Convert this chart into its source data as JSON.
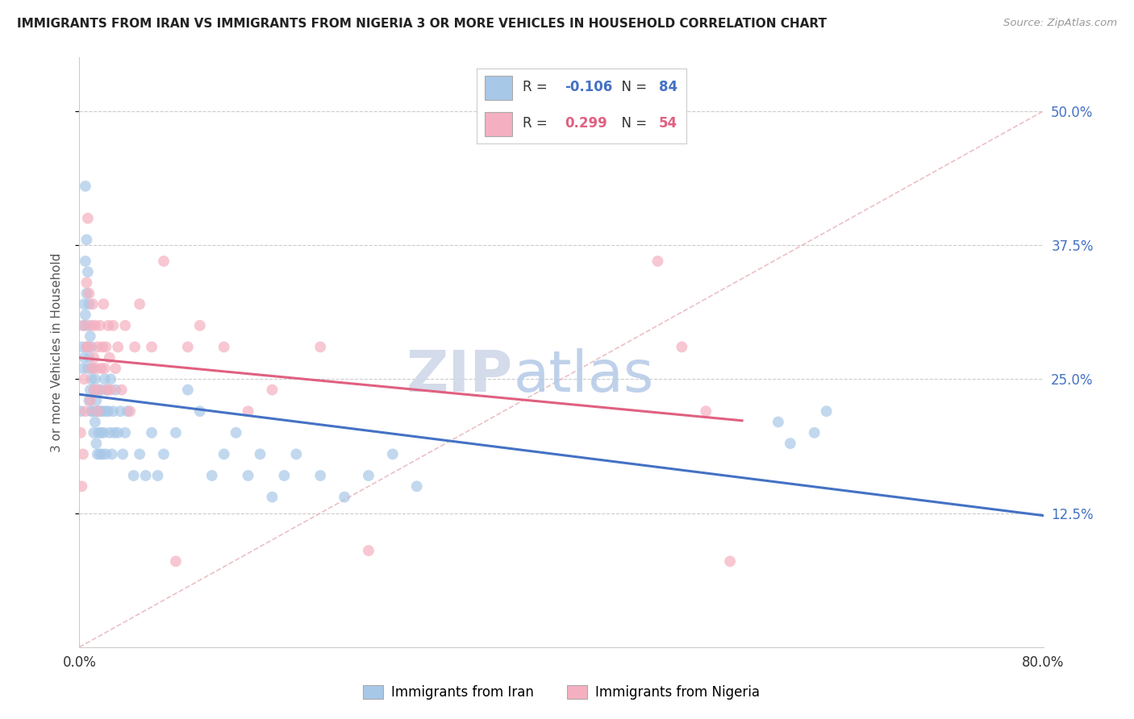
{
  "title": "IMMIGRANTS FROM IRAN VS IMMIGRANTS FROM NIGERIA 3 OR MORE VEHICLES IN HOUSEHOLD CORRELATION CHART",
  "source": "Source: ZipAtlas.com",
  "ylabel": "3 or more Vehicles in Household",
  "ytick_labels": [
    "12.5%",
    "25.0%",
    "37.5%",
    "50.0%"
  ],
  "legend_iran": "Immigrants from Iran",
  "legend_nigeria": "Immigrants from Nigeria",
  "R_iran": -0.106,
  "N_iran": 84,
  "R_nigeria": 0.299,
  "N_nigeria": 54,
  "iran_color": "#a8c8e8",
  "nigeria_color": "#f4b0c0",
  "iran_line_color": "#4472c4",
  "nigeria_line_color": "#e06080",
  "diagonal_color": "#e8b0b8",
  "background_color": "#ffffff",
  "xlim": [
    0.0,
    0.8
  ],
  "ylim": [
    0.0,
    0.55
  ],
  "iran_x": [
    0.001,
    0.002,
    0.003,
    0.003,
    0.004,
    0.004,
    0.005,
    0.005,
    0.005,
    0.006,
    0.006,
    0.006,
    0.007,
    0.007,
    0.007,
    0.008,
    0.008,
    0.008,
    0.009,
    0.009,
    0.01,
    0.01,
    0.01,
    0.011,
    0.011,
    0.012,
    0.012,
    0.013,
    0.013,
    0.014,
    0.014,
    0.015,
    0.015,
    0.016,
    0.016,
    0.017,
    0.017,
    0.018,
    0.018,
    0.019,
    0.019,
    0.02,
    0.021,
    0.022,
    0.022,
    0.023,
    0.024,
    0.025,
    0.026,
    0.027,
    0.028,
    0.029,
    0.03,
    0.032,
    0.034,
    0.036,
    0.038,
    0.04,
    0.045,
    0.05,
    0.055,
    0.06,
    0.065,
    0.07,
    0.08,
    0.09,
    0.1,
    0.11,
    0.12,
    0.13,
    0.14,
    0.15,
    0.16,
    0.17,
    0.18,
    0.2,
    0.22,
    0.24,
    0.26,
    0.28,
    0.58,
    0.59,
    0.61,
    0.62
  ],
  "iran_y": [
    0.22,
    0.28,
    0.3,
    0.26,
    0.32,
    0.27,
    0.43,
    0.36,
    0.31,
    0.38,
    0.33,
    0.28,
    0.35,
    0.3,
    0.26,
    0.32,
    0.27,
    0.23,
    0.29,
    0.24,
    0.28,
    0.25,
    0.22,
    0.26,
    0.22,
    0.24,
    0.2,
    0.25,
    0.21,
    0.23,
    0.19,
    0.22,
    0.18,
    0.24,
    0.2,
    0.22,
    0.18,
    0.24,
    0.2,
    0.22,
    0.18,
    0.2,
    0.25,
    0.22,
    0.18,
    0.24,
    0.22,
    0.2,
    0.25,
    0.18,
    0.22,
    0.2,
    0.24,
    0.2,
    0.22,
    0.18,
    0.2,
    0.22,
    0.16,
    0.18,
    0.16,
    0.2,
    0.16,
    0.18,
    0.2,
    0.24,
    0.22,
    0.16,
    0.18,
    0.2,
    0.16,
    0.18,
    0.14,
    0.16,
    0.18,
    0.16,
    0.14,
    0.16,
    0.18,
    0.15,
    0.21,
    0.19,
    0.2,
    0.22
  ],
  "nigeria_x": [
    0.001,
    0.002,
    0.003,
    0.004,
    0.004,
    0.005,
    0.006,
    0.006,
    0.007,
    0.008,
    0.008,
    0.009,
    0.01,
    0.01,
    0.011,
    0.012,
    0.012,
    0.013,
    0.014,
    0.015,
    0.015,
    0.016,
    0.017,
    0.018,
    0.019,
    0.02,
    0.021,
    0.022,
    0.023,
    0.024,
    0.025,
    0.026,
    0.028,
    0.03,
    0.032,
    0.035,
    0.038,
    0.042,
    0.046,
    0.05,
    0.06,
    0.07,
    0.08,
    0.09,
    0.1,
    0.12,
    0.14,
    0.16,
    0.2,
    0.24,
    0.48,
    0.5,
    0.52,
    0.54
  ],
  "nigeria_y": [
    0.2,
    0.15,
    0.18,
    0.3,
    0.25,
    0.22,
    0.28,
    0.34,
    0.4,
    0.28,
    0.33,
    0.23,
    0.3,
    0.26,
    0.32,
    0.27,
    0.24,
    0.3,
    0.26,
    0.22,
    0.28,
    0.24,
    0.3,
    0.26,
    0.28,
    0.32,
    0.26,
    0.28,
    0.24,
    0.3,
    0.27,
    0.24,
    0.3,
    0.26,
    0.28,
    0.24,
    0.3,
    0.22,
    0.28,
    0.32,
    0.28,
    0.36,
    0.08,
    0.28,
    0.3,
    0.28,
    0.22,
    0.24,
    0.28,
    0.09,
    0.36,
    0.28,
    0.22,
    0.08
  ]
}
